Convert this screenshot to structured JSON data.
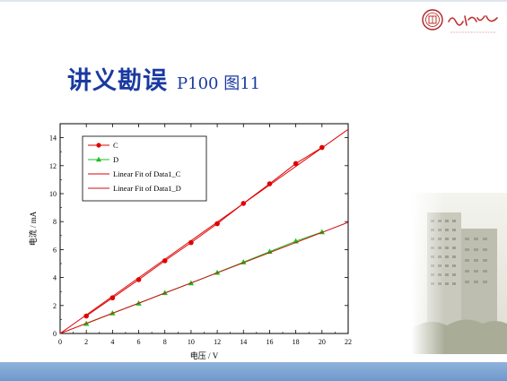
{
  "slide": {
    "title": "讲义勘误",
    "subtitle": "P100 图11"
  },
  "logo": {
    "name": "上海交通大学"
  },
  "colors": {
    "title": "#1a3aa0",
    "series_c": "#e00000",
    "series_d": "#1fbf1f",
    "fit_d": "#cc1111",
    "footer": "#7ea4d3"
  },
  "chart_data": {
    "type": "line",
    "xlabel": "电压 / V",
    "ylabel": "电流 / mA",
    "xlim": [
      0,
      22
    ],
    "ylim": [
      0,
      15
    ],
    "xticks": [
      0,
      2,
      4,
      6,
      8,
      10,
      12,
      14,
      16,
      18,
      20,
      22
    ],
    "yticks": [
      0,
      2,
      4,
      6,
      8,
      10,
      12,
      14
    ],
    "legend_position": "top-left",
    "series": [
      {
        "name": "C",
        "marker": "circle",
        "color": "#e00000",
        "x": [
          2,
          4,
          6,
          8,
          10,
          12,
          14,
          16,
          18,
          20
        ],
        "y": [
          1.25,
          2.55,
          3.85,
          5.2,
          6.5,
          7.85,
          9.3,
          10.7,
          12.15,
          13.3
        ]
      },
      {
        "name": "D",
        "marker": "triangle",
        "color": "#1fbf1f",
        "x": [
          2,
          4,
          6,
          8,
          10,
          12,
          14,
          16,
          18,
          20
        ],
        "y": [
          0.7,
          1.45,
          2.15,
          2.9,
          3.6,
          4.35,
          5.1,
          5.85,
          6.6,
          7.25
        ]
      },
      {
        "name": "Linear Fit of Data1_C",
        "fit": true,
        "color": "#e00000",
        "x": [
          0,
          22
        ],
        "y": [
          0,
          14.6
        ]
      },
      {
        "name": "Linear Fit of Data1_D",
        "fit": true,
        "color": "#cc1111",
        "x": [
          0,
          22
        ],
        "y": [
          0,
          7.95
        ]
      }
    ]
  }
}
